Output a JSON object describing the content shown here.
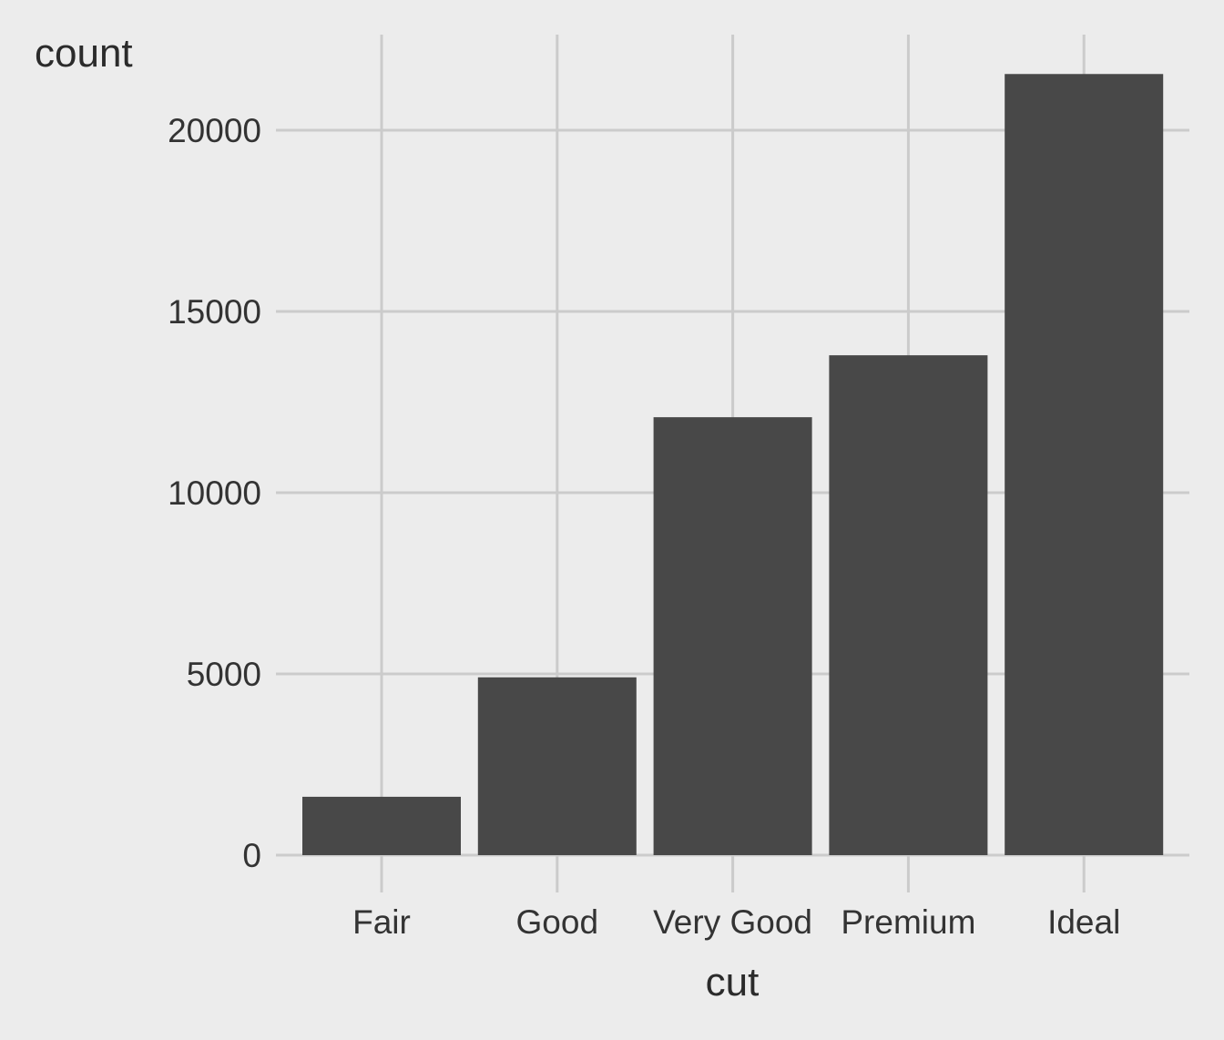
{
  "chart_data": {
    "type": "bar",
    "categories": [
      "Fair",
      "Good",
      "Very Good",
      "Premium",
      "Ideal"
    ],
    "values": [
      1610,
      4906,
      12082,
      13791,
      21551
    ],
    "xlabel": "cut",
    "ylabel": "count",
    "yticks": [
      0,
      5000,
      10000,
      15000,
      20000
    ],
    "ylim": [
      0,
      22629
    ],
    "grid": true,
    "legend": "none",
    "colors": {
      "background": "#ececec",
      "bar": "#484848",
      "grid": "#cbcbcb",
      "text": "#333333"
    }
  }
}
